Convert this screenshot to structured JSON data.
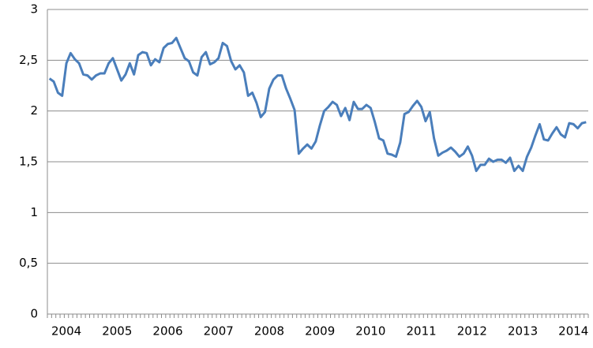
{
  "chart_data": {
    "type": "line",
    "categories": [
      null,
      null,
      null,
      null,
      "2004",
      null,
      null,
      null,
      null,
      null,
      null,
      null,
      null,
      null,
      null,
      null,
      "2005",
      null,
      null,
      null,
      null,
      null,
      null,
      null,
      null,
      null,
      null,
      null,
      "2006",
      null,
      null,
      null,
      null,
      null,
      null,
      null,
      null,
      null,
      null,
      null,
      "2007",
      null,
      null,
      null,
      null,
      null,
      null,
      null,
      null,
      null,
      null,
      null,
      "2008",
      null,
      null,
      null,
      null,
      null,
      null,
      null,
      null,
      null,
      null,
      null,
      "2009",
      null,
      null,
      null,
      null,
      null,
      null,
      null,
      null,
      null,
      null,
      null,
      "2010",
      null,
      null,
      null,
      null,
      null,
      null,
      null,
      null,
      null,
      null,
      null,
      "2011",
      null,
      null,
      null,
      null,
      null,
      null,
      null,
      null,
      null,
      null,
      null,
      "2012",
      null,
      null,
      null,
      null,
      null,
      null,
      null,
      null,
      null,
      null,
      null,
      "2013",
      null,
      null,
      null,
      null,
      null,
      null,
      null,
      null,
      null,
      null,
      null,
      "2014",
      null,
      null,
      null
    ],
    "values": [
      2.32,
      2.29,
      2.18,
      2.15,
      2.47,
      2.57,
      2.51,
      2.47,
      2.36,
      2.35,
      2.31,
      2.35,
      2.37,
      2.37,
      2.47,
      2.52,
      2.41,
      2.3,
      2.36,
      2.47,
      2.36,
      2.55,
      2.58,
      2.57,
      2.45,
      2.51,
      2.48,
      2.62,
      2.66,
      2.67,
      2.72,
      2.62,
      2.52,
      2.49,
      2.38,
      2.35,
      2.53,
      2.58,
      2.46,
      2.48,
      2.52,
      2.67,
      2.64,
      2.49,
      2.41,
      2.45,
      2.38,
      2.15,
      2.18,
      2.08,
      1.94,
      1.99,
      2.22,
      2.31,
      2.35,
      2.35,
      2.22,
      2.12,
      2.01,
      1.58,
      1.63,
      1.67,
      1.63,
      1.7,
      1.86,
      2.0,
      2.04,
      2.09,
      2.06,
      1.95,
      2.03,
      1.91,
      2.09,
      2.02,
      2.02,
      2.06,
      2.03,
      1.89,
      1.73,
      1.71,
      1.58,
      1.57,
      1.55,
      1.69,
      1.97,
      1.99,
      2.05,
      2.1,
      2.04,
      1.9,
      1.99,
      1.73,
      1.56,
      1.59,
      1.61,
      1.64,
      1.6,
      1.55,
      1.58,
      1.65,
      1.56,
      1.41,
      1.47,
      1.47,
      1.53,
      1.5,
      1.52,
      1.52,
      1.49,
      1.54,
      1.41,
      1.46,
      1.41,
      1.55,
      1.64,
      1.76,
      1.87,
      1.72,
      1.71,
      1.78,
      1.84,
      1.77,
      1.74,
      1.88,
      1.87,
      1.83,
      1.88,
      1.89
    ],
    "color": "#4a7ebb",
    "ylim": [
      0,
      3
    ],
    "yticks": [
      0,
      {
        "value": 0.5,
        "label": "0,5"
      },
      1,
      {
        "value": 1.5,
        "label": "1,5"
      },
      2,
      {
        "value": 2.5,
        "label": "2,5"
      },
      3
    ],
    "grid": true
  }
}
